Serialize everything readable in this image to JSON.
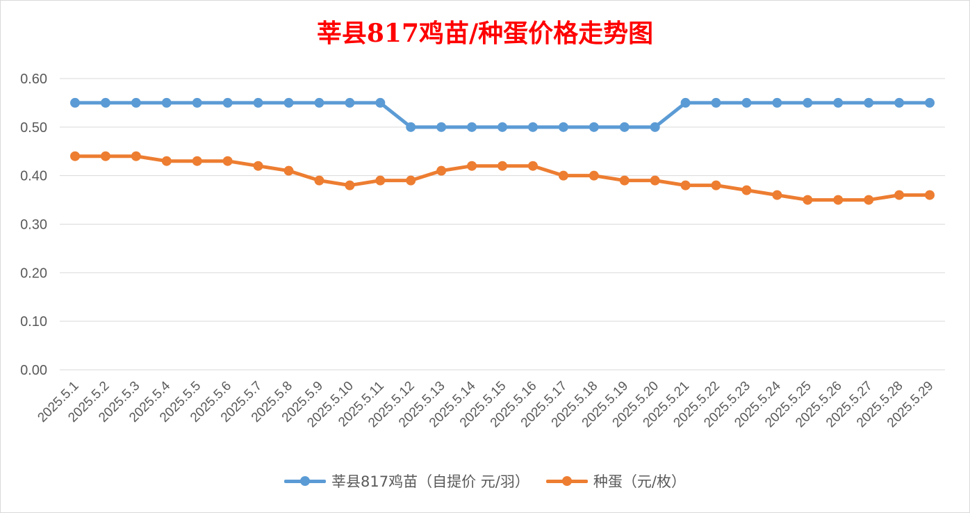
{
  "chart_data": {
    "type": "line",
    "title": "莘县817鸡苗/种蛋价格走势图",
    "xlabel": "",
    "ylabel": "",
    "categories": [
      "2025.5.1",
      "2025.5.2",
      "2025.5.3",
      "2025.5.4",
      "2025.5.5",
      "2025.5.6",
      "2025.5.7",
      "2025.5.8",
      "2025.5.9",
      "2025.5.10",
      "2025.5.11",
      "2025.5.12",
      "2025.5.13",
      "2025.5.14",
      "2025.5.15",
      "2025.5.16",
      "2025.5.17",
      "2025.5.18",
      "2025.5.19",
      "2025.5.20",
      "2025.5.21",
      "2025.5.22",
      "2025.5.23",
      "2025.5.24",
      "2025.5.25",
      "2025.5.26",
      "2025.5.27",
      "2025.5.28",
      "2025.5.29"
    ],
    "ylim": [
      0,
      0.6
    ],
    "yticks": [
      "0.00",
      "0.10",
      "0.20",
      "0.30",
      "0.40",
      "0.50",
      "0.60"
    ],
    "grid": true,
    "legend_position": "bottom",
    "series": [
      {
        "name": "莘县817鸡苗（自提价 元/羽）",
        "color": "#5b9bd5",
        "values": [
          0.55,
          0.55,
          0.55,
          0.55,
          0.55,
          0.55,
          0.55,
          0.55,
          0.55,
          0.55,
          0.55,
          0.5,
          0.5,
          0.5,
          0.5,
          0.5,
          0.5,
          0.5,
          0.5,
          0.5,
          0.55,
          0.55,
          0.55,
          0.55,
          0.55,
          0.55,
          0.55,
          0.55,
          0.55
        ]
      },
      {
        "name": "种蛋（元/枚）",
        "color": "#ed7d31",
        "values": [
          0.44,
          0.44,
          0.44,
          0.43,
          0.43,
          0.43,
          0.42,
          0.41,
          0.39,
          0.38,
          0.39,
          0.39,
          0.41,
          0.42,
          0.42,
          0.42,
          0.4,
          0.4,
          0.39,
          0.39,
          0.38,
          0.38,
          0.37,
          0.36,
          0.35,
          0.35,
          0.35,
          0.36,
          0.36
        ]
      }
    ]
  }
}
